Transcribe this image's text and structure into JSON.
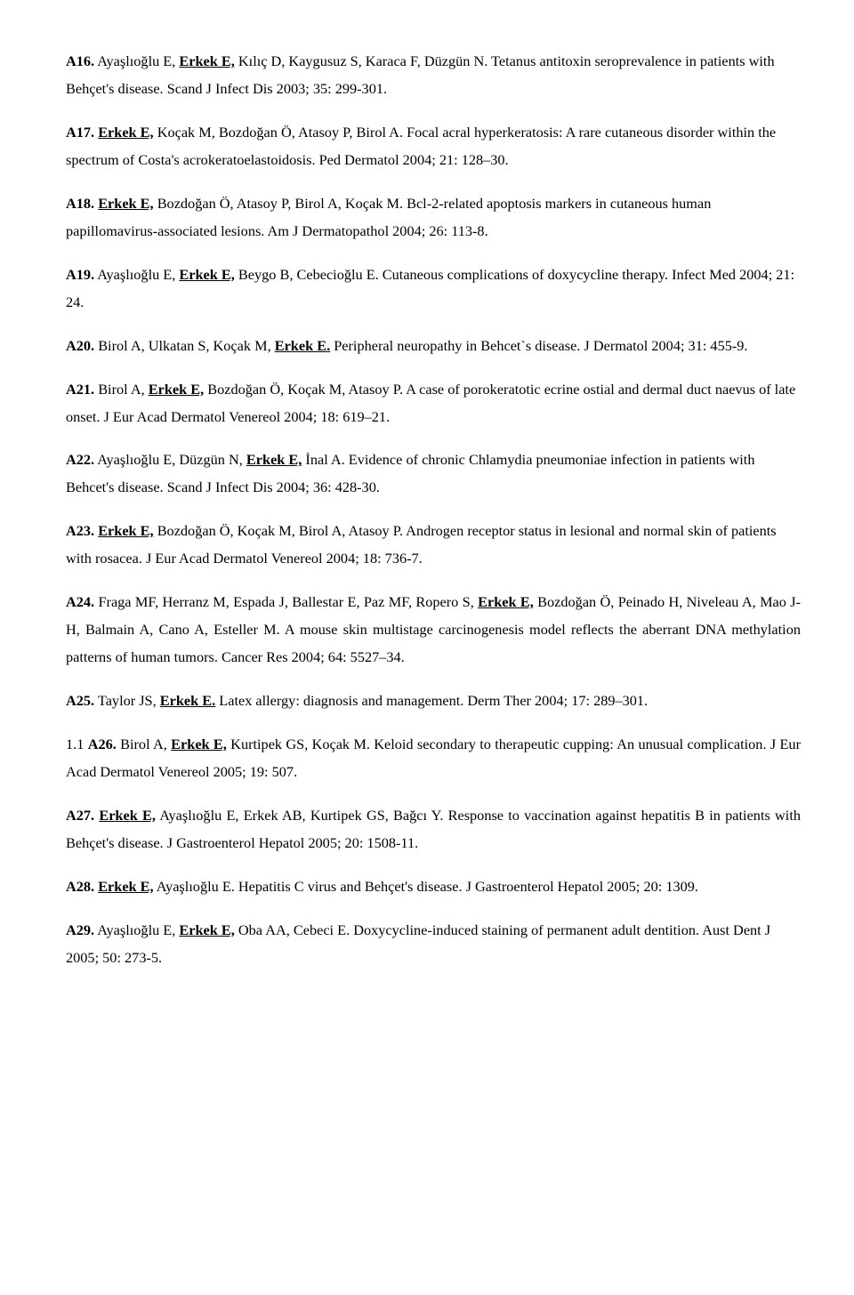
{
  "refs": [
    {
      "num": "A16.",
      "authors_pre": "Ayaşlıoğlu E, ",
      "erkek": "Erkek E,",
      "authors_post": " Kılıç D, Kaygusuz S, Karaca F, Düzgün N. Tetanus antitoxin seroprevalence in patients with Behçet's disease. Scand J Infect Dis 2003; 35: 299-301.",
      "justify": false
    },
    {
      "num": "A17.",
      "authors_pre": "",
      "erkek": "Erkek E,",
      "authors_post": " Koçak M, Bozdoğan Ö, Atasoy P, Birol A. Focal acral hyperkeratosis: A rare cutaneous disorder within the spectrum of Costa's acrokeratoelastoidosis. Ped Dermatol 2004; 21: 128–30.",
      "justify": false
    },
    {
      "num": "A18.",
      "authors_pre": "",
      "erkek": "Erkek E,",
      "authors_post": " Bozdoğan Ö, Atasoy P, Birol A, Koçak M. Bcl-2-related apoptosis markers in cutaneous human papillomavirus-associated lesions. Am J Dermatopathol 2004; 26: 113-8.",
      "justify": false
    },
    {
      "num": "A19.",
      "authors_pre": "Ayaşlıoğlu E, ",
      "erkek": "Erkek E,",
      "authors_post": " Beygo B, Cebecioğlu E. Cutaneous complications of doxycycline therapy. Infect Med 2004; 21: 24.",
      "justify": false
    },
    {
      "num": "A20.",
      "authors_pre": "Birol A, Ulkatan S, Koçak M, ",
      "erkek": "Erkek E.",
      "authors_post": " Peripheral neuropathy in Behcet`s disease. J Dermatol 2004; 31: 455-9.",
      "justify": false
    },
    {
      "num": "A21.",
      "authors_pre": " Birol A, ",
      "erkek": "Erkek E,",
      "authors_post": " Bozdoğan Ö, Koçak M, Atasoy P. A case of porokeratotic ecrine ostial and dermal duct naevus of late onset. J Eur Acad Dermatol Venereol 2004; 18: 619–21.",
      "justify": false
    },
    {
      "num": "A22.",
      "authors_pre": "Ayaşlıoğlu E, Düzgün N, ",
      "erkek": "Erkek E,",
      "authors_post": " İnal A. Evidence of chronic Chlamydia pneumoniae infection in patients with Behcet's disease. Scand J Infect Dis 2004; 36: 428-30.",
      "justify": false
    },
    {
      "num": "A23.",
      "authors_pre": "",
      "erkek": "Erkek E,",
      "authors_post": " Bozdoğan Ö, Koçak M, Birol A, Atasoy P. Androgen receptor status in lesional and normal skin of patients with rosacea. J Eur Acad Dermatol Venereol 2004; 18: 736-7.",
      "justify": false
    },
    {
      "num": "A24.",
      "authors_pre": "Fraga MF, Herranz M, Espada J, Ballestar E, Paz MF, Ropero S, ",
      "erkek": "Erkek E,",
      "authors_post": " Bozdoğan Ö, Peinado H, Niveleau A, Mao J-H, Balmain A, Cano A, Esteller M. A mouse skin multistage carcinogenesis model reflects the aberrant DNA methylation patterns of human tumors. Cancer Res 2004; 64: 5527–34.",
      "justify": true
    },
    {
      "num": "A25.",
      "authors_pre": "Taylor JS, ",
      "erkek": "Erkek E.",
      "authors_post": " Latex allergy: diagnosis and management. Derm Ther 2004; 17: 289–301.",
      "justify": false
    },
    {
      "num": "A26.",
      "prefix": "1.1 ",
      "authors_pre": "Birol A, ",
      "erkek": "Erkek E,",
      "authors_post": " Kurtipek GS, Koçak M. Keloid secondary to therapeutic cupping: An unusual complication. J Eur Acad Dermatol Venereol 2005; 19: 507.",
      "justify": true
    },
    {
      "num": "A27.",
      "authors_pre": "",
      "erkek": "Erkek E,",
      "authors_post": " Ayaşlıoğlu E, Erkek AB, Kurtipek GS, Bağcı Y. Response to vaccination against hepatitis B in patients with Behçet's disease. J Gastroenterol Hepatol 2005; 20: 1508-11.",
      "justify": true
    },
    {
      "num": "A28.",
      "authors_pre": "",
      "erkek": "Erkek E,",
      "authors_post": " Ayaşlıoğlu E. Hepatitis C virus and Behçet's disease. J Gastroenterol Hepatol 2005; 20: 1309.",
      "justify": false
    },
    {
      "num": "A29.",
      "authors_pre": "Ayaşlıoğlu E, ",
      "erkek": "Erkek E,",
      "authors_post": " Oba AA, Cebeci E. Doxycycline-induced staining of permanent adult dentition. Aust Dent J 2005; 50: 273-5.",
      "justify": false
    }
  ]
}
